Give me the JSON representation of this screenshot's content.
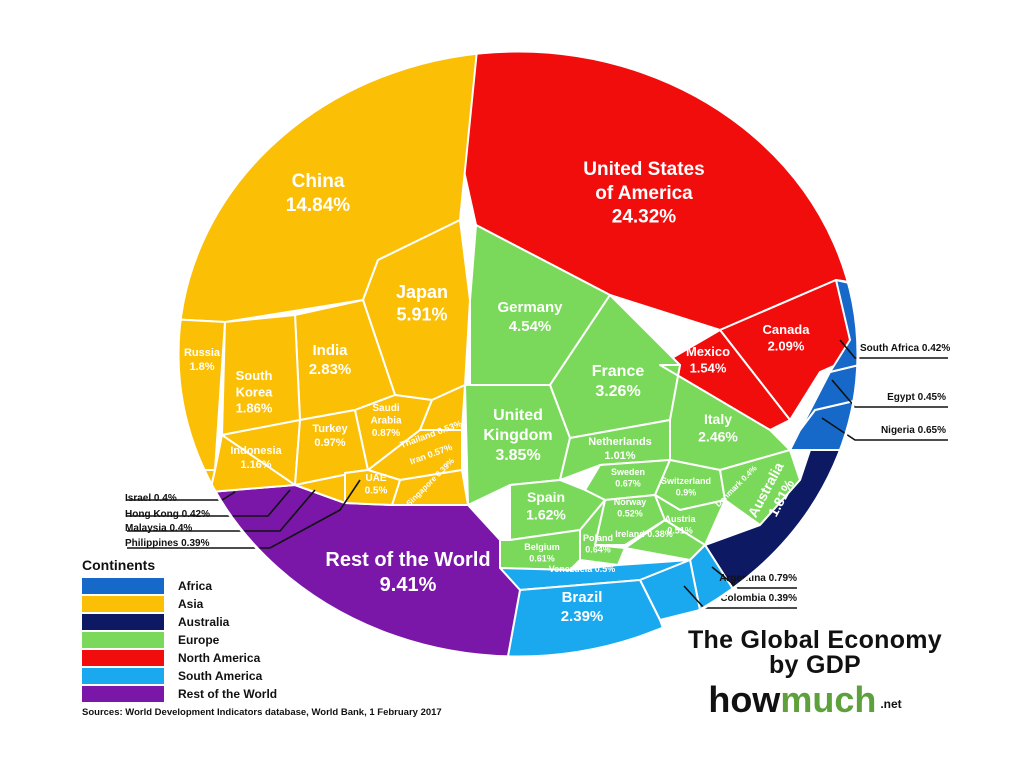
{
  "chart_data": {
    "type": "voronoi-treemap",
    "title": "The Global Economy by GDP",
    "brand": {
      "prefix": "how",
      "accent": "much",
      "suffix": ".net"
    },
    "source": "Sources: World Development Indicators database, World Bank, 1 February 2017",
    "legend_title": "Continents",
    "legend_position": "bottom-left",
    "continents": [
      {
        "name": "Africa",
        "color": "#1769c9"
      },
      {
        "name": "Asia",
        "color": "#fbbf06"
      },
      {
        "name": "Australia",
        "color": "#0d1a63"
      },
      {
        "name": "Europe",
        "color": "#7ad95a"
      },
      {
        "name": "North America",
        "color": "#f20d0d"
      },
      {
        "name": "South America",
        "color": "#1aa9ef"
      },
      {
        "name": "Rest of the World",
        "color": "#7a16a8"
      }
    ],
    "countries": [
      {
        "name": "United States of America",
        "value": 24.32,
        "value_label": "24.32%",
        "continent": "North America"
      },
      {
        "name": "Canada",
        "value": 2.09,
        "value_label": "2.09%",
        "continent": "North America"
      },
      {
        "name": "Mexico",
        "value": 1.54,
        "value_label": "1.54%",
        "continent": "North America"
      },
      {
        "name": "China",
        "value": 14.84,
        "value_label": "14.84%",
        "continent": "Asia"
      },
      {
        "name": "Japan",
        "value": 5.91,
        "value_label": "5.91%",
        "continent": "Asia"
      },
      {
        "name": "India",
        "value": 2.83,
        "value_label": "2.83%",
        "continent": "Asia"
      },
      {
        "name": "South Korea",
        "value": 1.86,
        "value_label": "1.86%",
        "continent": "Asia"
      },
      {
        "name": "Russia",
        "value": 1.8,
        "value_label": "1.8%",
        "continent": "Asia"
      },
      {
        "name": "Indonesia",
        "value": 1.16,
        "value_label": "1.16%",
        "continent": "Asia"
      },
      {
        "name": "Turkey",
        "value": 0.97,
        "value_label": "0.97%",
        "continent": "Asia"
      },
      {
        "name": "Saudi Arabia",
        "value": 0.87,
        "value_label": "0.87%",
        "continent": "Asia"
      },
      {
        "name": "Iran",
        "value": 0.57,
        "value_label": "0.57%",
        "continent": "Asia"
      },
      {
        "name": "Thailand",
        "value": 0.53,
        "value_label": "0.53%",
        "continent": "Asia"
      },
      {
        "name": "UAE",
        "value": 0.5,
        "value_label": "0.5%",
        "continent": "Asia"
      },
      {
        "name": "Singapore",
        "value": 0.39,
        "value_label": "0.39%",
        "continent": "Asia"
      },
      {
        "name": "Hong Kong",
        "value": 0.42,
        "value_label": "0.42%",
        "continent": "Asia"
      },
      {
        "name": "Israel",
        "value": 0.4,
        "value_label": "0.4%",
        "continent": "Asia"
      },
      {
        "name": "Malaysia",
        "value": 0.4,
        "value_label": "0.4%",
        "continent": "Asia"
      },
      {
        "name": "Philippines",
        "value": 0.39,
        "value_label": "0.39%",
        "continent": "Asia"
      },
      {
        "name": "Germany",
        "value": 4.54,
        "value_label": "4.54%",
        "continent": "Europe"
      },
      {
        "name": "United Kingdom",
        "value": 3.85,
        "value_label": "3.85%",
        "continent": "Europe"
      },
      {
        "name": "France",
        "value": 3.26,
        "value_label": "3.26%",
        "continent": "Europe"
      },
      {
        "name": "Italy",
        "value": 2.46,
        "value_label": "2.46%",
        "continent": "Europe"
      },
      {
        "name": "Spain",
        "value": 1.62,
        "value_label": "1.62%",
        "continent": "Europe"
      },
      {
        "name": "Netherlands",
        "value": 1.01,
        "value_label": "1.01%",
        "continent": "Europe"
      },
      {
        "name": "Switzerland",
        "value": 0.9,
        "value_label": "0.9%",
        "continent": "Europe"
      },
      {
        "name": "Sweden",
        "value": 0.67,
        "value_label": "0.67%",
        "continent": "Europe"
      },
      {
        "name": "Poland",
        "value": 0.64,
        "value_label": "0.64%",
        "continent": "Europe"
      },
      {
        "name": "Belgium",
        "value": 0.61,
        "value_label": "0.61%",
        "continent": "Europe"
      },
      {
        "name": "Norway",
        "value": 0.52,
        "value_label": "0.52%",
        "continent": "Europe"
      },
      {
        "name": "Austria",
        "value": 0.51,
        "value_label": "0.51%",
        "continent": "Europe"
      },
      {
        "name": "Denmark",
        "value": 0.4,
        "value_label": "0.4%",
        "continent": "Europe"
      },
      {
        "name": "Ireland",
        "value": 0.38,
        "value_label": "0.38%",
        "continent": "Europe"
      },
      {
        "name": "Brazil",
        "value": 2.39,
        "value_label": "2.39%",
        "continent": "South America"
      },
      {
        "name": "Argentina",
        "value": 0.79,
        "value_label": "0.79%",
        "continent": "South America"
      },
      {
        "name": "Venezuela",
        "value": 0.5,
        "value_label": "0.5%",
        "continent": "South America"
      },
      {
        "name": "Colombia",
        "value": 0.39,
        "value_label": "0.39%",
        "continent": "South America"
      },
      {
        "name": "Australia",
        "value": 1.81,
        "value_label": "1.81%",
        "continent": "Australia"
      },
      {
        "name": "Nigeria",
        "value": 0.65,
        "value_label": "0.65%",
        "continent": "Africa"
      },
      {
        "name": "Egypt",
        "value": 0.45,
        "value_label": "0.45%",
        "continent": "Africa"
      },
      {
        "name": "South Africa",
        "value": 0.42,
        "value_label": "0.42%",
        "continent": "Africa"
      },
      {
        "name": "Rest of the World",
        "value": 9.41,
        "value_label": "9.41%",
        "continent": "Rest of the World"
      }
    ]
  }
}
